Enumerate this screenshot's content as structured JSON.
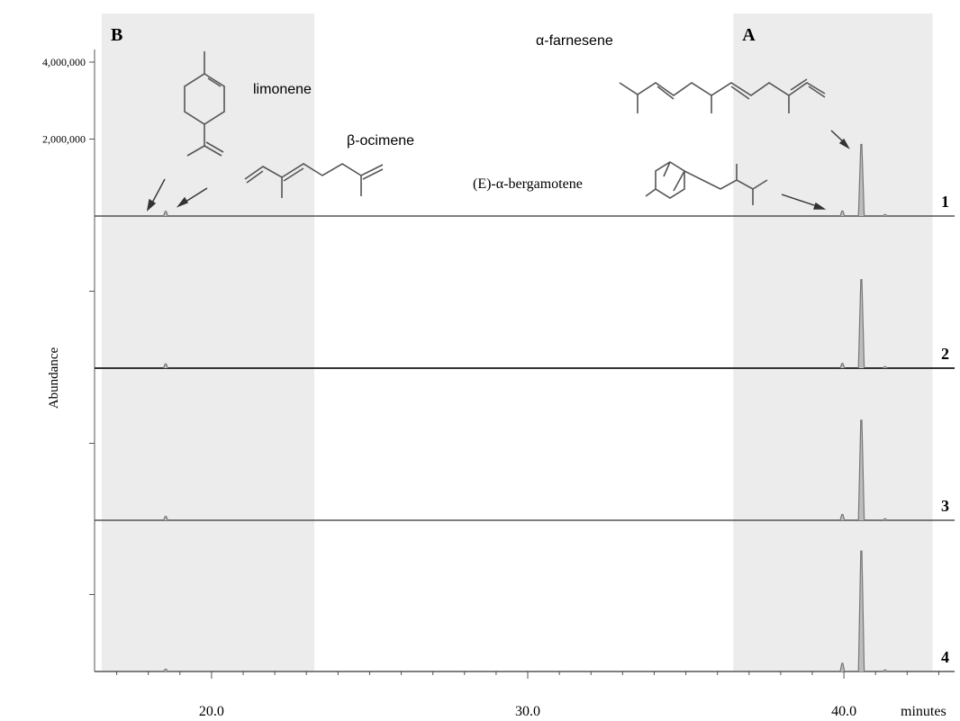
{
  "chart_data": {
    "type": "line",
    "ylabel": "Abundance",
    "xlabel": "minutes",
    "x_unit_label": "minutes",
    "xlim": [
      16.3,
      43.5
    ],
    "x_ticks": [
      {
        "value": 20.0,
        "label": "20.0"
      },
      {
        "value": 30.0,
        "label": "30.0"
      },
      {
        "value": 40.0,
        "label": "40.0"
      }
    ],
    "y_ticks": [
      {
        "value": 4000000,
        "label": "4,000,000"
      },
      {
        "value": 2000000,
        "label": "2,000,000"
      }
    ],
    "ylim_per_trace": [
      0,
      4000000
    ],
    "regions": [
      {
        "label": "B",
        "x_range": [
          16.3,
          23.25
        ]
      },
      {
        "label": "A",
        "x_range": [
          36.5,
          42.8
        ]
      }
    ],
    "series": [
      {
        "name": "1",
        "peaks": [
          {
            "x": 18.55,
            "y": 120000
          },
          {
            "x": 39.95,
            "y": 130000
          },
          {
            "x": 40.55,
            "y": 1860000
          },
          {
            "x": 41.3,
            "y": 40000
          }
        ]
      },
      {
        "name": "2",
        "peaks": [
          {
            "x": 18.55,
            "y": 110000
          },
          {
            "x": 39.95,
            "y": 120000
          },
          {
            "x": 40.55,
            "y": 2300000
          },
          {
            "x": 41.3,
            "y": 40000
          }
        ]
      },
      {
        "name": "3",
        "peaks": [
          {
            "x": 18.55,
            "y": 100000
          },
          {
            "x": 39.95,
            "y": 150000
          },
          {
            "x": 40.55,
            "y": 2600000
          },
          {
            "x": 41.3,
            "y": 40000
          }
        ]
      },
      {
        "name": "4",
        "peaks": [
          {
            "x": 18.55,
            "y": 60000
          },
          {
            "x": 39.95,
            "y": 210000
          },
          {
            "x": 40.55,
            "y": 3130000
          },
          {
            "x": 41.3,
            "y": 40000
          }
        ]
      }
    ],
    "annotations": [
      {
        "text": "limonene"
      },
      {
        "text": "β-ocimene"
      },
      {
        "text": "α-farnesene"
      },
      {
        "text": "(E)-α-bergamotene"
      }
    ],
    "colors": {
      "trace": "#777777",
      "baseline": "#333333",
      "region": "#ececec",
      "axis": "#555555"
    }
  }
}
